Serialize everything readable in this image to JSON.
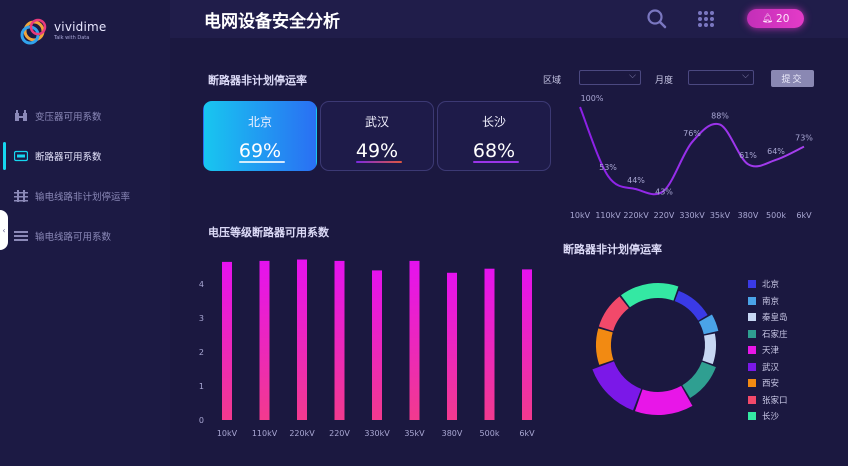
{
  "app": {
    "logo_text": "vividime",
    "logo_tagline": "Talk with Data"
  },
  "header": {
    "title": "电网设备安全分析",
    "notification_count": "20"
  },
  "sidebar": {
    "items": [
      {
        "label": "变压器可用系数",
        "icon": "transformer-icon",
        "active": false
      },
      {
        "label": "断路器可用系数",
        "icon": "breaker-icon",
        "active": true
      },
      {
        "label": "输电线路非计划停运率",
        "icon": "line-outage-icon",
        "active": false
      },
      {
        "label": "输电线路可用系数",
        "icon": "line-availability-icon",
        "active": false
      }
    ]
  },
  "outage_section": {
    "title": "断路器非计划停运率",
    "filters": {
      "region_label": "区域",
      "region_value": "",
      "month_label": "月度",
      "month_value": "",
      "submit_label": "提交"
    },
    "cards": [
      {
        "name": "北京",
        "value": "69%",
        "bar_color": "#ffffff"
      },
      {
        "name": "武汉",
        "value": "49%",
        "bar_color": "#e0563f"
      },
      {
        "name": "长沙",
        "value": "68%",
        "bar_color": "#9a35e8"
      }
    ]
  },
  "chart_data": [
    {
      "type": "line",
      "title": "",
      "categories": [
        "10kV",
        "110kV",
        "220kV",
        "220V",
        "330kV",
        "35kV",
        "380V",
        "500k",
        "6kV"
      ],
      "values": [
        100,
        53,
        44,
        43,
        76,
        88,
        61,
        64,
        73
      ],
      "labels": [
        "100%",
        "53%",
        "44%",
        "43%",
        "76%",
        "88%",
        "61%",
        "64%",
        "73%"
      ],
      "color": "#8b2be2"
    },
    {
      "type": "bar",
      "title": "电压等级断路器可用系数",
      "categories": [
        "10kV",
        "110kV",
        "220kV",
        "220V",
        "330kV",
        "35kV",
        "380V",
        "500k",
        "6kV"
      ],
      "values": [
        4.65,
        4.68,
        4.72,
        4.68,
        4.4,
        4.68,
        4.33,
        4.45,
        4.43
      ],
      "y_ticks": [
        "0",
        "1",
        "2",
        "3",
        "4"
      ],
      "ylim": [
        0,
        5
      ],
      "gradient": [
        "#ee14f0",
        "#f0358f"
      ]
    },
    {
      "type": "pie",
      "title": "断路器非计划停运率",
      "legend_position": "right",
      "series": [
        {
          "name": "北京",
          "value": 11,
          "color": "#3a3ae6"
        },
        {
          "name": "南京",
          "value": 5,
          "color": "#4aa3e8"
        },
        {
          "name": "秦皇岛",
          "value": 9,
          "color": "#c7d7f3"
        },
        {
          "name": "石家庄",
          "value": 11,
          "color": "#2f9f91"
        },
        {
          "name": "天津",
          "value": 14,
          "color": "#e816e8"
        },
        {
          "name": "武汉",
          "value": 14,
          "color": "#7b18e8"
        },
        {
          "name": "西安",
          "value": 10,
          "color": "#f28a12"
        },
        {
          "name": "张家口",
          "value": 10,
          "color": "#f2496a"
        },
        {
          "name": "长沙",
          "value": 16,
          "color": "#34e8a3"
        }
      ]
    }
  ]
}
